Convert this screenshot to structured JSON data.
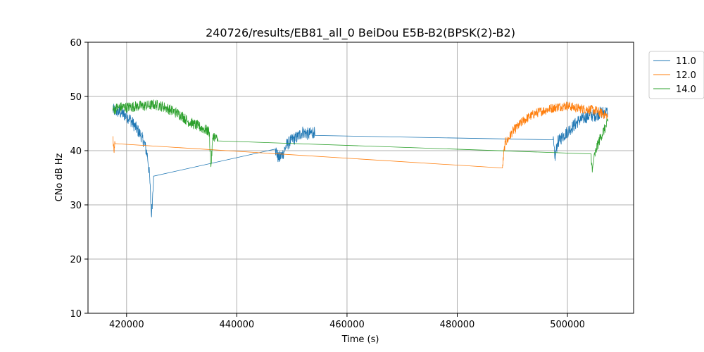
{
  "chart_data": {
    "type": "line",
    "title": "240726/results/EB81_all_0 BeiDou E5B-B2(BPSK(2)-B2)",
    "xlabel": "Time (s)",
    "ylabel": "CNo dB Hz",
    "xlim": [
      413000,
      512000
    ],
    "ylim": [
      10,
      60
    ],
    "xticks": [
      420000,
      440000,
      460000,
      480000,
      500000
    ],
    "yticks": [
      10,
      20,
      30,
      40,
      50,
      60
    ],
    "xtick_labels": [
      "420000",
      "440000",
      "460000",
      "480000",
      "500000"
    ],
    "ytick_labels": [
      "10",
      "20",
      "30",
      "40",
      "50",
      "60"
    ],
    "grid": true,
    "legend_position": "outside-top-right",
    "series": [
      {
        "name": "11.0",
        "color": "#1f77b4",
        "noise": 1.2,
        "points": [
          [
            417500,
            47.5
          ],
          [
            419000,
            47.0
          ],
          [
            420500,
            46.0
          ],
          [
            421500,
            44.5
          ],
          [
            422500,
            43.0
          ],
          [
            423200,
            41.5
          ],
          [
            423800,
            39.0
          ],
          [
            424200,
            35.0
          ],
          [
            424500,
            28.0
          ],
          [
            424700,
            31.0
          ],
          [
            424900,
            35.3
          ],
          [
            447000,
            40.3
          ],
          [
            447600,
            38.5
          ],
          [
            448400,
            39.5
          ],
          [
            449000,
            41.0
          ],
          [
            450000,
            42.0
          ],
          [
            451000,
            42.5
          ],
          [
            452000,
            43.5
          ],
          [
            453000,
            43.0
          ],
          [
            454000,
            43.5
          ],
          [
            454200,
            42.8
          ],
          [
            497400,
            42.0
          ],
          [
            497700,
            38.5
          ],
          [
            498200,
            41.5
          ],
          [
            499000,
            42.5
          ],
          [
            500000,
            43.5
          ],
          [
            501000,
            44.5
          ],
          [
            502000,
            45.5
          ],
          [
            503000,
            46.0
          ],
          [
            504000,
            46.5
          ],
          [
            505000,
            46.5
          ],
          [
            506000,
            47.0
          ],
          [
            507000,
            47.2
          ],
          [
            507300,
            47.0
          ]
        ]
      },
      {
        "name": "12.0",
        "color": "#ff7f0e",
        "noise": 0.9,
        "points": [
          [
            417500,
            42.5
          ],
          [
            417700,
            40.0
          ],
          [
            417900,
            41.3
          ],
          [
            488200,
            36.8
          ],
          [
            488400,
            39.0
          ],
          [
            488700,
            41.5
          ],
          [
            489200,
            42.0
          ],
          [
            490000,
            43.5
          ],
          [
            491000,
            44.5
          ],
          [
            492000,
            45.5
          ],
          [
            493000,
            46.2
          ],
          [
            494000,
            46.8
          ],
          [
            495000,
            47.2
          ],
          [
            496000,
            47.5
          ],
          [
            497000,
            47.8
          ],
          [
            498000,
            48.0
          ],
          [
            499000,
            48.2
          ],
          [
            500000,
            48.3
          ],
          [
            501000,
            48.0
          ],
          [
            502000,
            47.8
          ],
          [
            503000,
            47.7
          ],
          [
            504000,
            47.6
          ],
          [
            505000,
            47.4
          ],
          [
            506000,
            47.0
          ],
          [
            507000,
            46.5
          ],
          [
            507300,
            46.3
          ]
        ]
      },
      {
        "name": "14.0",
        "color": "#2ca02c",
        "noise": 1.0,
        "points": [
          [
            417500,
            47.5
          ],
          [
            418500,
            48.0
          ],
          [
            420000,
            48.0
          ],
          [
            422000,
            48.2
          ],
          [
            424000,
            48.3
          ],
          [
            425000,
            48.5
          ],
          [
            426000,
            48.3
          ],
          [
            427000,
            48.0
          ],
          [
            428000,
            47.5
          ],
          [
            429000,
            47.0
          ],
          [
            430000,
            46.5
          ],
          [
            431000,
            45.5
          ],
          [
            432000,
            45.0
          ],
          [
            433000,
            44.5
          ],
          [
            434000,
            44.0
          ],
          [
            435000,
            43.5
          ],
          [
            435300,
            37.0
          ],
          [
            435700,
            43.0
          ],
          [
            436000,
            42.5
          ],
          [
            436600,
            41.8
          ],
          [
            504300,
            39.4
          ],
          [
            504500,
            36.0
          ],
          [
            504800,
            38.5
          ],
          [
            505300,
            40.5
          ],
          [
            506000,
            42.5
          ],
          [
            507000,
            44.5
          ],
          [
            507400,
            45.5
          ]
        ]
      }
    ]
  }
}
